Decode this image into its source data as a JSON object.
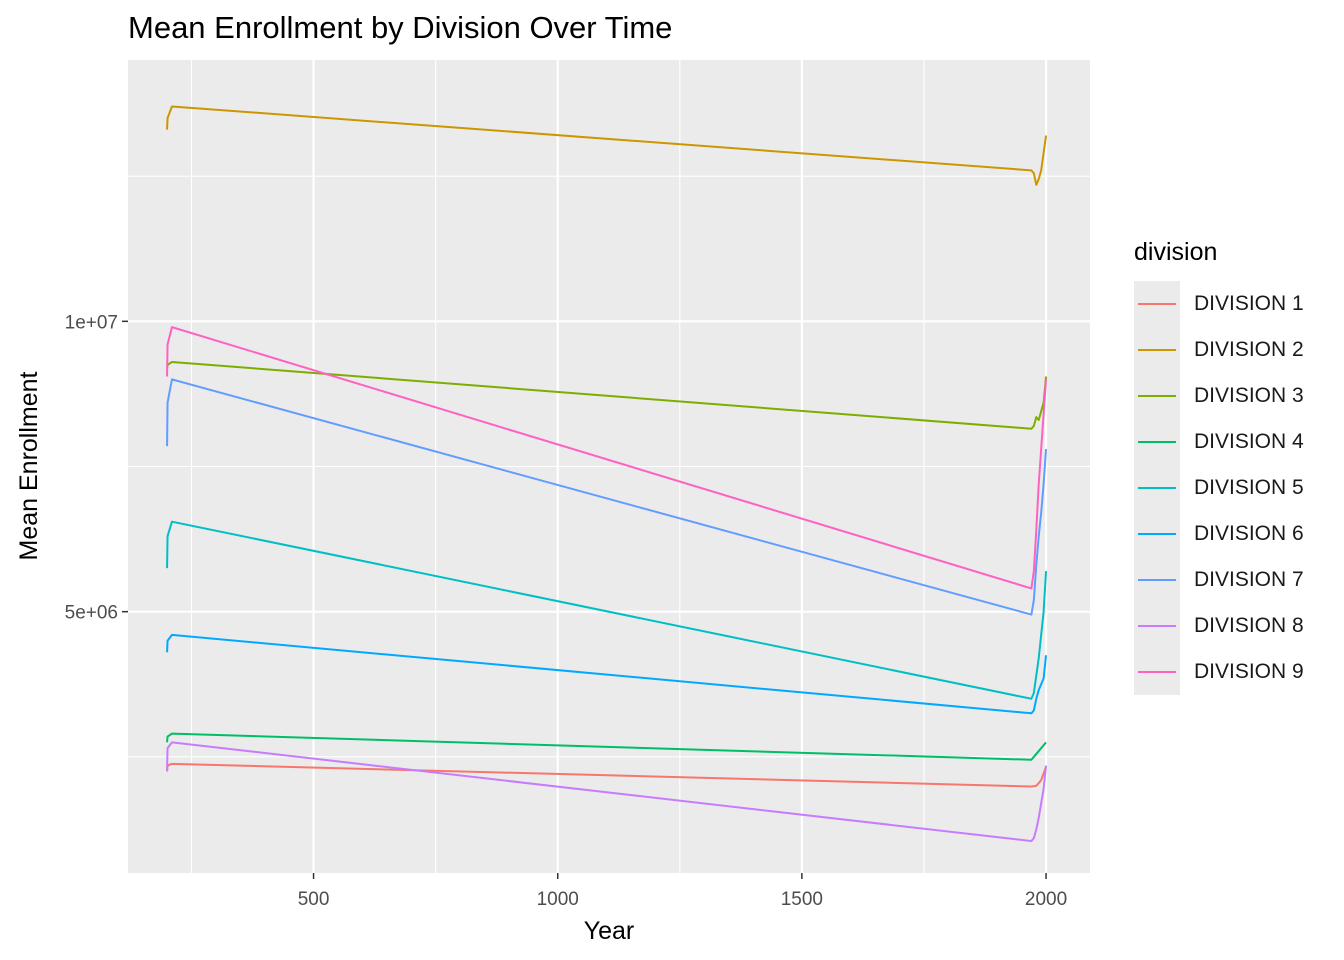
{
  "chart_data": {
    "type": "line",
    "title": "Mean Enrollment by Division Over Time",
    "xlabel": "Year",
    "ylabel": "Mean Enrollment",
    "xlim": [
      120,
      2090
    ],
    "ylim": [
      500000,
      14500000
    ],
    "x_ticks": [
      500,
      1000,
      1500,
      2000
    ],
    "x_tick_labels": [
      "500",
      "1000",
      "1500",
      "2000"
    ],
    "y_ticks": [
      5000000,
      10000000
    ],
    "y_tick_labels": [
      "5e+06",
      "1e+07"
    ],
    "x_minor_ticks": [
      250,
      750,
      1250,
      1750
    ],
    "y_minor_ticks": [
      2500000,
      7500000,
      12500000
    ],
    "grid": true,
    "legend": {
      "title": "division",
      "position": "right"
    },
    "series": [
      {
        "name": "DIVISION 1",
        "color": "#F8766D",
        "x": [
          200,
          201,
          210,
          1970,
          1980,
          1990,
          2000
        ],
        "y": [
          2250000,
          2350000,
          2380000,
          1990000,
          2000000,
          2100000,
          2330000
        ]
      },
      {
        "name": "DIVISION 2",
        "color": "#CD9600",
        "x": [
          200,
          201,
          210,
          1970,
          1975,
          1980,
          1985,
          1990,
          2000
        ],
        "y": [
          13300000,
          13500000,
          13700000,
          12600000,
          12550000,
          12350000,
          12450000,
          12600000,
          13200000
        ]
      },
      {
        "name": "DIVISION 3",
        "color": "#7CAE00",
        "x": [
          200,
          201,
          210,
          1970,
          1975,
          1980,
          1985,
          1990,
          1995,
          2000
        ],
        "y": [
          9200000,
          9250000,
          9300000,
          8150000,
          8200000,
          8350000,
          8300000,
          8450000,
          8600000,
          9050000
        ]
      },
      {
        "name": "DIVISION 4",
        "color": "#00BE67",
        "x": [
          200,
          201,
          210,
          1970,
          1980,
          1990,
          2000
        ],
        "y": [
          2750000,
          2850000,
          2900000,
          2450000,
          2550000,
          2650000,
          2750000
        ]
      },
      {
        "name": "DIVISION 5",
        "color": "#00BFC4",
        "x": [
          200,
          201,
          210,
          1970,
          1975,
          1980,
          1985,
          1990,
          1995,
          2000
        ],
        "y": [
          5750000,
          6300000,
          6550000,
          3500000,
          3600000,
          3900000,
          4200000,
          4600000,
          5000000,
          5700000
        ]
      },
      {
        "name": "DIVISION 6",
        "color": "#00A9FF",
        "x": [
          200,
          201,
          210,
          1970,
          1975,
          1980,
          1985,
          1990,
          1995,
          2000
        ],
        "y": [
          4300000,
          4500000,
          4600000,
          3250000,
          3300000,
          3500000,
          3650000,
          3750000,
          3850000,
          4250000
        ]
      },
      {
        "name": "DIVISION 7",
        "color": "#619CFF",
        "x": [
          200,
          201,
          210,
          1970,
          1975,
          1980,
          1985,
          1990,
          1995,
          2000
        ],
        "y": [
          7850000,
          8600000,
          9000000,
          4950000,
          5200000,
          5800000,
          6300000,
          6700000,
          7200000,
          7800000
        ]
      },
      {
        "name": "DIVISION 8",
        "color": "#C77CFF",
        "x": [
          200,
          201,
          210,
          1970,
          1975,
          1980,
          1985,
          1990,
          1995,
          2000
        ],
        "y": [
          2250000,
          2650000,
          2750000,
          1050000,
          1100000,
          1250000,
          1450000,
          1700000,
          1950000,
          2350000
        ]
      },
      {
        "name": "DIVISION 9",
        "color": "#FF61C3",
        "x": [
          200,
          201,
          210,
          1970,
          1975,
          1980,
          1985,
          1990,
          1995,
          2000
        ],
        "y": [
          9050000,
          9600000,
          9900000,
          5400000,
          5700000,
          6400000,
          7200000,
          7800000,
          8400000,
          9000000
        ]
      }
    ]
  }
}
